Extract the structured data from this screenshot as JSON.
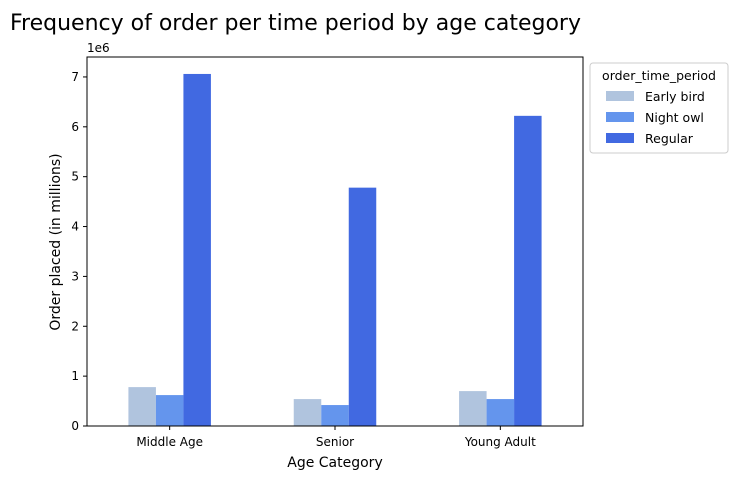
{
  "chart_data": {
    "type": "bar",
    "title": "Frequency of order per time period by age category",
    "xlabel": "Age Category",
    "ylabel": "Order placed (in millions)",
    "offset_text": "1e6",
    "categories": [
      "Middle Age",
      "Senior",
      "Young Adult"
    ],
    "series": [
      {
        "name": "Early bird",
        "color": "#b0c4de",
        "values": [
          780000,
          540000,
          700000
        ]
      },
      {
        "name": "Night owl",
        "color": "#6495ed",
        "values": [
          620000,
          420000,
          540000
        ]
      },
      {
        "name": "Regular",
        "color": "#4169e1",
        "values": [
          7060000,
          4780000,
          6220000
        ]
      }
    ],
    "ylim": [
      0,
      7400000
    ],
    "yticks": [
      0,
      1,
      2,
      3,
      4,
      5,
      6,
      7
    ],
    "grid": false,
    "legend": {
      "title": "order_time_period",
      "placement": "outside-upper-right"
    }
  }
}
